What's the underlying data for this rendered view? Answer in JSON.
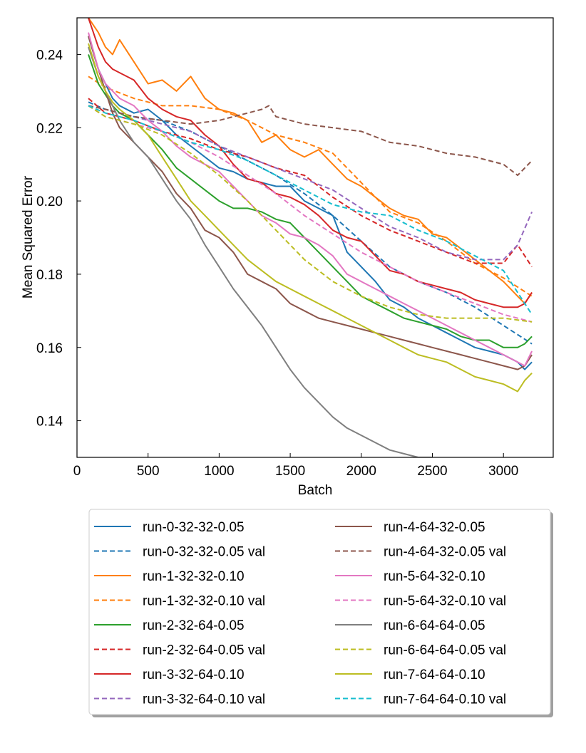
{
  "chart_data": {
    "type": "line",
    "title": "",
    "xlabel": "Batch",
    "ylabel": "Mean Squared Error",
    "xlim": [
      0,
      3350
    ],
    "ylim": [
      0.13,
      0.25
    ],
    "xticks": [
      0,
      500,
      1000,
      1500,
      2000,
      2500,
      3000
    ],
    "yticks": [
      0.14,
      0.16,
      0.18,
      0.2,
      0.22,
      0.24
    ],
    "xtick_labels": [
      "0",
      "500",
      "1000",
      "1500",
      "2000",
      "2500",
      "3000"
    ],
    "ytick_labels": [
      "0.14",
      "0.16",
      "0.18",
      "0.20",
      "0.22",
      "0.24"
    ],
    "grid": false,
    "legend_position": "below-plot",
    "legend_columns": 2,
    "series": [
      {
        "name": "run-0-32-32-0.05",
        "color": "#1f77b4",
        "dash": "solid",
        "x": [
          80,
          150,
          200,
          250,
          300,
          400,
          500,
          600,
          700,
          800,
          900,
          1000,
          1100,
          1200,
          1300,
          1400,
          1500,
          1600,
          1700,
          1800,
          1900,
          2000,
          2100,
          2200,
          2300,
          2400,
          2500,
          2600,
          2700,
          2800,
          2900,
          3000,
          3100,
          3150,
          3200
        ],
        "y": [
          0.245,
          0.236,
          0.232,
          0.228,
          0.226,
          0.224,
          0.225,
          0.222,
          0.218,
          0.215,
          0.212,
          0.209,
          0.208,
          0.206,
          0.205,
          0.204,
          0.204,
          0.2,
          0.198,
          0.196,
          0.186,
          0.182,
          0.178,
          0.173,
          0.171,
          0.168,
          0.166,
          0.164,
          0.162,
          0.16,
          0.159,
          0.158,
          0.156,
          0.154,
          0.156
        ]
      },
      {
        "name": "run-0-32-32-0.05 val",
        "color": "#1f77b4",
        "dash": "dashed",
        "x": [
          80,
          200,
          400,
          600,
          800,
          1000,
          1200,
          1400,
          1600,
          1800,
          2000,
          2200,
          2400,
          2600,
          2800,
          3000,
          3200
        ],
        "y": [
          0.227,
          0.225,
          0.223,
          0.222,
          0.219,
          0.215,
          0.211,
          0.207,
          0.202,
          0.196,
          0.189,
          0.182,
          0.178,
          0.175,
          0.171,
          0.166,
          0.161
        ]
      },
      {
        "name": "run-1-32-32-0.10",
        "color": "#ff7f0e",
        "dash": "solid",
        "x": [
          80,
          150,
          200,
          250,
          300,
          400,
          500,
          600,
          700,
          800,
          900,
          1000,
          1100,
          1200,
          1300,
          1400,
          1500,
          1600,
          1700,
          1800,
          1900,
          2000,
          2100,
          2200,
          2300,
          2400,
          2500,
          2600,
          2700,
          2800,
          2900,
          3000,
          3100,
          3150,
          3200
        ],
        "y": [
          0.25,
          0.246,
          0.242,
          0.24,
          0.244,
          0.238,
          0.232,
          0.233,
          0.23,
          0.234,
          0.228,
          0.225,
          0.224,
          0.222,
          0.216,
          0.218,
          0.214,
          0.212,
          0.214,
          0.21,
          0.206,
          0.204,
          0.201,
          0.198,
          0.196,
          0.195,
          0.191,
          0.19,
          0.187,
          0.184,
          0.181,
          0.178,
          0.174,
          0.172,
          0.175
        ]
      },
      {
        "name": "run-1-32-32-0.10 val",
        "color": "#ff7f0e",
        "dash": "dashed",
        "x": [
          80,
          200,
          400,
          600,
          800,
          1000,
          1200,
          1400,
          1600,
          1800,
          2000,
          2200,
          2400,
          2600,
          2800,
          3000,
          3200
        ],
        "y": [
          0.234,
          0.231,
          0.228,
          0.226,
          0.226,
          0.225,
          0.222,
          0.218,
          0.216,
          0.213,
          0.205,
          0.197,
          0.194,
          0.189,
          0.183,
          0.179,
          0.174
        ]
      },
      {
        "name": "run-2-32-64-0.05",
        "color": "#2ca02c",
        "dash": "solid",
        "x": [
          80,
          150,
          200,
          250,
          300,
          400,
          500,
          600,
          700,
          800,
          900,
          1000,
          1100,
          1200,
          1300,
          1400,
          1500,
          1600,
          1700,
          1800,
          1900,
          2000,
          2100,
          2200,
          2300,
          2400,
          2500,
          2600,
          2700,
          2800,
          2900,
          3000,
          3100,
          3150,
          3200
        ],
        "y": [
          0.24,
          0.232,
          0.229,
          0.226,
          0.224,
          0.222,
          0.218,
          0.214,
          0.209,
          0.206,
          0.203,
          0.2,
          0.198,
          0.198,
          0.197,
          0.195,
          0.194,
          0.19,
          0.186,
          0.182,
          0.178,
          0.174,
          0.172,
          0.17,
          0.168,
          0.167,
          0.166,
          0.165,
          0.163,
          0.162,
          0.162,
          0.16,
          0.16,
          0.161,
          0.163
        ]
      },
      {
        "name": "run-2-32-64-0.05 val",
        "color": "#d62728",
        "dash": "dashed",
        "x": [
          80,
          200,
          400,
          600,
          800,
          1000,
          1200,
          1400,
          1600,
          1800,
          2000,
          2200,
          2400,
          2600,
          2800,
          3000,
          3100,
          3200
        ],
        "y": [
          0.228,
          0.224,
          0.222,
          0.219,
          0.217,
          0.214,
          0.212,
          0.209,
          0.207,
          0.201,
          0.196,
          0.192,
          0.189,
          0.186,
          0.183,
          0.183,
          0.188,
          0.182
        ]
      },
      {
        "name": "run-3-32-64-0.10",
        "color": "#d62728",
        "dash": "solid",
        "x": [
          80,
          150,
          200,
          250,
          300,
          400,
          500,
          600,
          700,
          800,
          900,
          1000,
          1100,
          1200,
          1300,
          1400,
          1500,
          1600,
          1700,
          1800,
          1900,
          2000,
          2100,
          2200,
          2300,
          2400,
          2500,
          2600,
          2700,
          2800,
          2900,
          3000,
          3100,
          3150,
          3200
        ],
        "y": [
          0.25,
          0.242,
          0.238,
          0.236,
          0.235,
          0.233,
          0.228,
          0.225,
          0.223,
          0.222,
          0.218,
          0.215,
          0.21,
          0.206,
          0.205,
          0.202,
          0.201,
          0.199,
          0.196,
          0.192,
          0.19,
          0.189,
          0.185,
          0.181,
          0.18,
          0.178,
          0.177,
          0.176,
          0.175,
          0.173,
          0.172,
          0.171,
          0.171,
          0.172,
          0.175
        ]
      },
      {
        "name": "run-3-32-64-0.10 val",
        "color": "#9467bd",
        "dash": "dashed",
        "x": [
          80,
          200,
          400,
          600,
          800,
          1000,
          1200,
          1400,
          1600,
          1800,
          2000,
          2200,
          2400,
          2600,
          2800,
          3000,
          3100,
          3200
        ],
        "y": [
          0.226,
          0.225,
          0.223,
          0.221,
          0.219,
          0.215,
          0.212,
          0.209,
          0.206,
          0.203,
          0.198,
          0.193,
          0.19,
          0.186,
          0.184,
          0.184,
          0.188,
          0.197
        ]
      },
      {
        "name": "run-4-64-32-0.05",
        "color": "#8c564b",
        "dash": "solid",
        "x": [
          80,
          150,
          200,
          250,
          300,
          400,
          500,
          600,
          700,
          800,
          900,
          1000,
          1100,
          1200,
          1300,
          1400,
          1500,
          1600,
          1700,
          1800,
          1900,
          2000,
          2100,
          2200,
          2300,
          2400,
          2500,
          2600,
          2700,
          2800,
          2900,
          3000,
          3100,
          3150,
          3200
        ],
        "y": [
          0.245,
          0.236,
          0.23,
          0.224,
          0.22,
          0.216,
          0.212,
          0.208,
          0.202,
          0.198,
          0.192,
          0.19,
          0.186,
          0.18,
          0.178,
          0.176,
          0.172,
          0.17,
          0.168,
          0.167,
          0.166,
          0.165,
          0.164,
          0.163,
          0.162,
          0.161,
          0.16,
          0.159,
          0.158,
          0.157,
          0.156,
          0.155,
          0.154,
          0.155,
          0.158
        ]
      },
      {
        "name": "run-4-64-32-0.05 val",
        "color": "#8c564b",
        "dash": "dashed",
        "x": [
          80,
          200,
          400,
          600,
          800,
          1000,
          1100,
          1200,
          1300,
          1350,
          1400,
          1600,
          1800,
          2000,
          2200,
          2400,
          2600,
          2800,
          3000,
          3100,
          3200
        ],
        "y": [
          0.226,
          0.225,
          0.223,
          0.222,
          0.221,
          0.222,
          0.223,
          0.224,
          0.225,
          0.226,
          0.223,
          0.221,
          0.22,
          0.219,
          0.216,
          0.215,
          0.213,
          0.212,
          0.21,
          0.207,
          0.211
        ]
      },
      {
        "name": "run-5-64-32-0.10",
        "color": "#e377c2",
        "dash": "solid",
        "x": [
          80,
          150,
          200,
          250,
          300,
          400,
          500,
          600,
          700,
          800,
          900,
          1000,
          1100,
          1200,
          1300,
          1400,
          1500,
          1600,
          1700,
          1800,
          1900,
          2000,
          2100,
          2200,
          2300,
          2400,
          2500,
          2600,
          2700,
          2800,
          2900,
          3000,
          3100,
          3150,
          3200
        ],
        "y": [
          0.246,
          0.236,
          0.232,
          0.23,
          0.228,
          0.226,
          0.222,
          0.219,
          0.215,
          0.212,
          0.21,
          0.208,
          0.204,
          0.2,
          0.196,
          0.194,
          0.191,
          0.19,
          0.188,
          0.185,
          0.18,
          0.178,
          0.176,
          0.174,
          0.172,
          0.17,
          0.168,
          0.166,
          0.164,
          0.162,
          0.16,
          0.158,
          0.156,
          0.155,
          0.159
        ]
      },
      {
        "name": "run-5-64-32-0.10 val",
        "color": "#e377c2",
        "dash": "dashed",
        "x": [
          80,
          200,
          400,
          600,
          800,
          1000,
          1200,
          1400,
          1600,
          1800,
          2000,
          2200,
          2400,
          2600,
          2800,
          3000,
          3200
        ],
        "y": [
          0.226,
          0.223,
          0.221,
          0.219,
          0.216,
          0.212,
          0.207,
          0.202,
          0.196,
          0.191,
          0.186,
          0.182,
          0.178,
          0.175,
          0.172,
          0.169,
          0.167
        ]
      },
      {
        "name": "run-6-64-64-0.05",
        "color": "#7f7f7f",
        "dash": "solid",
        "x": [
          80,
          150,
          200,
          250,
          300,
          400,
          500,
          600,
          700,
          800,
          900,
          1000,
          1100,
          1200,
          1300,
          1400,
          1500,
          1600,
          1700,
          1800,
          1900,
          2000,
          2100,
          2200,
          2300,
          2400,
          2500
        ],
        "y": [
          0.242,
          0.234,
          0.23,
          0.226,
          0.222,
          0.216,
          0.212,
          0.206,
          0.2,
          0.195,
          0.188,
          0.182,
          0.176,
          0.171,
          0.166,
          0.16,
          0.154,
          0.149,
          0.145,
          0.141,
          0.138,
          0.136,
          0.134,
          0.132,
          0.131,
          0.13,
          0.13
        ]
      },
      {
        "name": "run-6-64-64-0.05 val",
        "color": "#bcbd22",
        "dash": "dashed",
        "x": [
          80,
          200,
          400,
          600,
          800,
          1000,
          1200,
          1400,
          1600,
          1800,
          2000,
          2200,
          2400,
          2600,
          2800,
          3000,
          3200
        ],
        "y": [
          0.226,
          0.223,
          0.221,
          0.218,
          0.213,
          0.207,
          0.2,
          0.192,
          0.184,
          0.178,
          0.174,
          0.171,
          0.169,
          0.168,
          0.168,
          0.168,
          0.167
        ]
      },
      {
        "name": "run-7-64-64-0.10",
        "color": "#bcbd22",
        "dash": "solid",
        "x": [
          80,
          150,
          200,
          250,
          300,
          400,
          500,
          600,
          700,
          800,
          900,
          1000,
          1100,
          1200,
          1300,
          1400,
          1500,
          1600,
          1700,
          1800,
          1900,
          2000,
          2100,
          2200,
          2300,
          2400,
          2500,
          2600,
          2700,
          2800,
          2900,
          3000,
          3100,
          3150,
          3200
        ],
        "y": [
          0.243,
          0.234,
          0.23,
          0.227,
          0.225,
          0.222,
          0.218,
          0.212,
          0.206,
          0.2,
          0.196,
          0.192,
          0.188,
          0.184,
          0.181,
          0.178,
          0.176,
          0.174,
          0.172,
          0.17,
          0.168,
          0.166,
          0.164,
          0.162,
          0.16,
          0.158,
          0.157,
          0.156,
          0.154,
          0.152,
          0.151,
          0.15,
          0.148,
          0.151,
          0.153
        ]
      },
      {
        "name": "run-7-64-64-0.10 val",
        "color": "#17becf",
        "dash": "dashed",
        "x": [
          80,
          200,
          400,
          600,
          800,
          1000,
          1200,
          1400,
          1600,
          1800,
          2000,
          2200,
          2400,
          2600,
          2800,
          3000,
          3200
        ],
        "y": [
          0.226,
          0.224,
          0.222,
          0.219,
          0.216,
          0.214,
          0.211,
          0.207,
          0.203,
          0.199,
          0.197,
          0.196,
          0.192,
          0.189,
          0.185,
          0.181,
          0.169
        ]
      }
    ]
  }
}
